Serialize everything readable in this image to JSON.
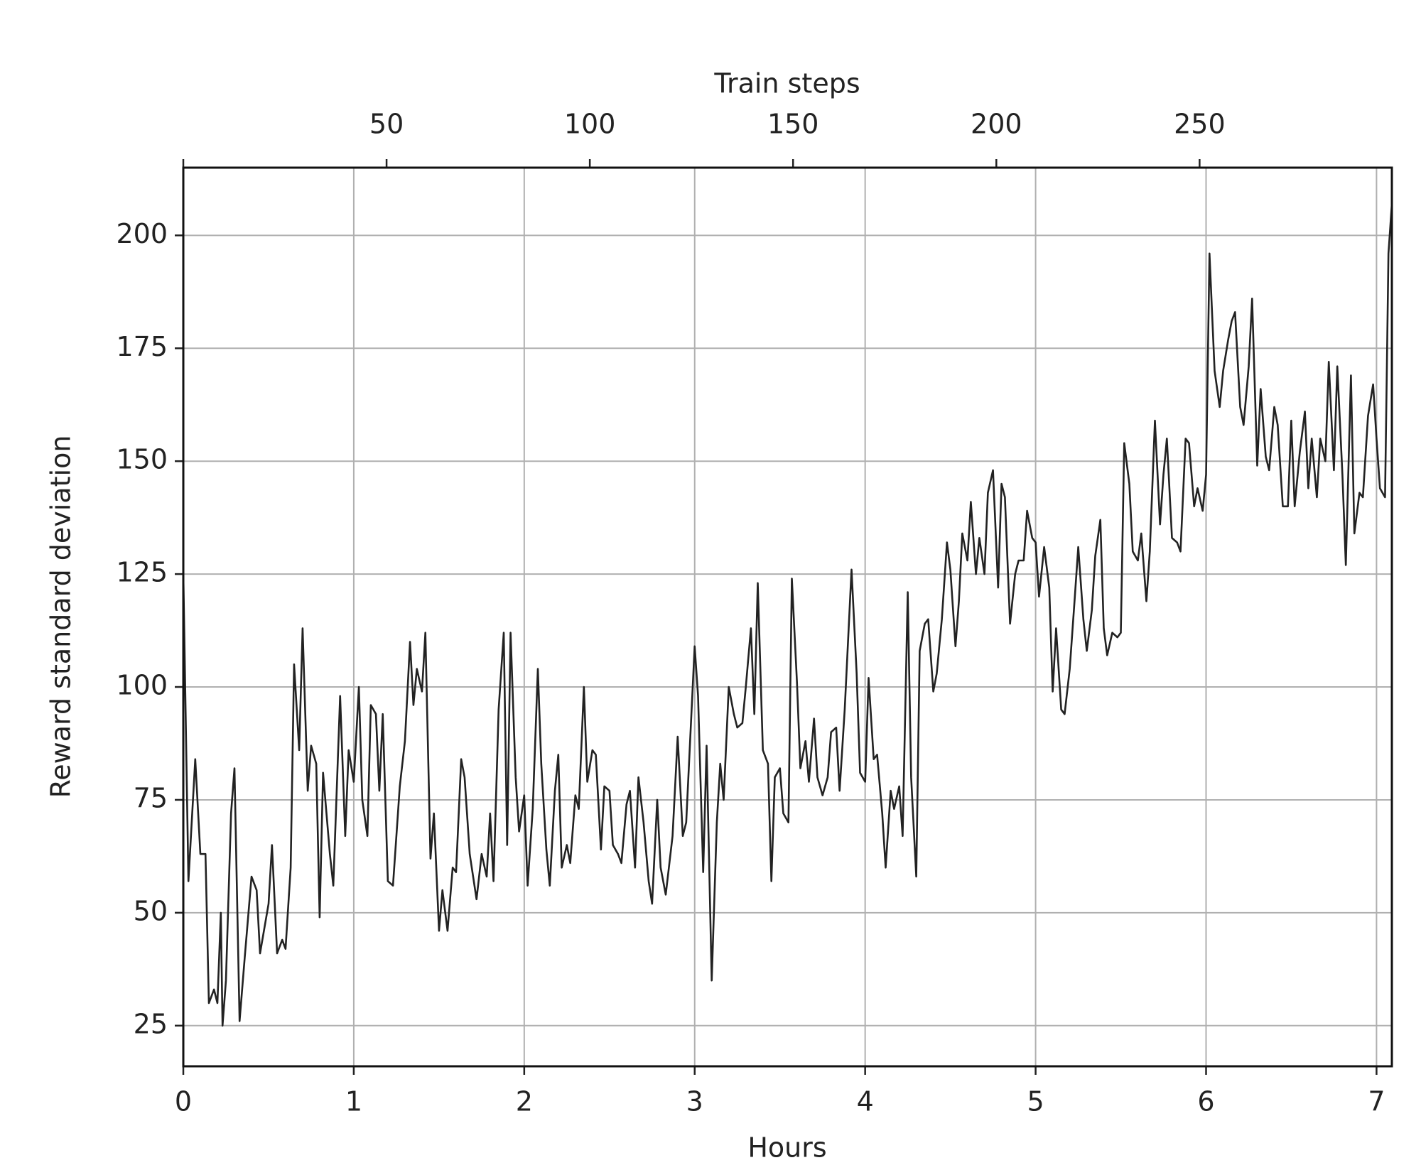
{
  "chart_data": {
    "type": "line",
    "xlabel": "Hours",
    "ylabel": "Reward standard deviation",
    "x2label": "Train steps",
    "xlim": [
      0,
      7.09
    ],
    "xticks": [
      0,
      1,
      2,
      3,
      4,
      5,
      6,
      7
    ],
    "x2lim": [
      0,
      297.3
    ],
    "x2ticks": [
      50,
      100,
      150,
      200,
      250
    ],
    "ylim": [
      16,
      215
    ],
    "yticks": [
      25,
      50,
      75,
      100,
      125,
      150,
      175,
      200
    ],
    "grid": true,
    "color": "#222222",
    "x": [
      0,
      0.03,
      0.07,
      0.1,
      0.13,
      0.15,
      0.18,
      0.2,
      0.22,
      0.23,
      0.25,
      0.28,
      0.3,
      0.33,
      0.36,
      0.4,
      0.43,
      0.45,
      0.5,
      0.52,
      0.55,
      0.58,
      0.6,
      0.63,
      0.65,
      0.68,
      0.7,
      0.73,
      0.75,
      0.78,
      0.8,
      0.82,
      0.86,
      0.88,
      0.9,
      0.92,
      0.95,
      0.97,
      1.0,
      1.03,
      1.05,
      1.08,
      1.1,
      1.13,
      1.15,
      1.17,
      1.2,
      1.23,
      1.27,
      1.3,
      1.33,
      1.35,
      1.37,
      1.4,
      1.42,
      1.45,
      1.47,
      1.5,
      1.52,
      1.55,
      1.58,
      1.6,
      1.63,
      1.65,
      1.68,
      1.7,
      1.72,
      1.75,
      1.78,
      1.8,
      1.82,
      1.85,
      1.88,
      1.9,
      1.92,
      1.95,
      1.97,
      2.0,
      2.02,
      2.05,
      2.08,
      2.1,
      2.13,
      2.15,
      2.18,
      2.2,
      2.22,
      2.25,
      2.27,
      2.3,
      2.32,
      2.35,
      2.37,
      2.4,
      2.42,
      2.45,
      2.47,
      2.5,
      2.52,
      2.55,
      2.57,
      2.6,
      2.62,
      2.65,
      2.67,
      2.7,
      2.73,
      2.75,
      2.78,
      2.8,
      2.83,
      2.87,
      2.9,
      2.93,
      2.95,
      3.0,
      3.02,
      3.05,
      3.07,
      3.1,
      3.13,
      3.15,
      3.17,
      3.2,
      3.23,
      3.25,
      3.28,
      3.3,
      3.33,
      3.35,
      3.37,
      3.4,
      3.43,
      3.45,
      3.47,
      3.5,
      3.52,
      3.55,
      3.57,
      3.6,
      3.62,
      3.65,
      3.67,
      3.7,
      3.72,
      3.75,
      3.78,
      3.8,
      3.83,
      3.85,
      3.88,
      3.92,
      3.95,
      3.97,
      4.0,
      4.02,
      4.05,
      4.07,
      4.1,
      4.12,
      4.15,
      4.17,
      4.2,
      4.22,
      4.25,
      4.27,
      4.3,
      4.32,
      4.35,
      4.37,
      4.4,
      4.42,
      4.45,
      4.48,
      4.5,
      4.53,
      4.55,
      4.57,
      4.6,
      4.62,
      4.65,
      4.67,
      4.7,
      4.72,
      4.75,
      4.78,
      4.8,
      4.82,
      4.85,
      4.88,
      4.9,
      4.93,
      4.95,
      4.98,
      5.0,
      5.02,
      5.05,
      5.08,
      5.1,
      5.12,
      5.15,
      5.17,
      5.2,
      5.23,
      5.25,
      5.28,
      5.3,
      5.33,
      5.35,
      5.38,
      5.4,
      5.42,
      5.45,
      5.48,
      5.5,
      5.52,
      5.55,
      5.57,
      5.6,
      5.62,
      5.65,
      5.67,
      5.7,
      5.73,
      5.75,
      5.77,
      5.8,
      5.83,
      5.85,
      5.88,
      5.9,
      5.93,
      5.95,
      5.98,
      6.0,
      6.02,
      6.05,
      6.08,
      6.1,
      6.13,
      6.15,
      6.17,
      6.2,
      6.22,
      6.25,
      6.27,
      6.3,
      6.32,
      6.35,
      6.37,
      6.4,
      6.42,
      6.45,
      6.48,
      6.5,
      6.52,
      6.55,
      6.58,
      6.6,
      6.62,
      6.65,
      6.67,
      6.7,
      6.72,
      6.75,
      6.77,
      6.8,
      6.82,
      6.85,
      6.87,
      6.9,
      6.92,
      6.95,
      6.98,
      7.0,
      7.02,
      7.05,
      7.07,
      7.09
    ],
    "values": [
      125,
      57,
      84,
      63,
      63,
      30,
      33,
      30,
      50,
      25,
      35,
      72,
      82,
      26,
      40,
      58,
      55,
      41,
      52,
      65,
      41,
      44,
      42,
      60,
      105,
      86,
      113,
      77,
      87,
      83,
      49,
      81,
      63,
      56,
      77,
      98,
      67,
      86,
      79,
      100,
      75,
      67,
      96,
      94,
      77,
      94,
      57,
      56,
      78,
      88,
      110,
      96,
      104,
      99,
      112,
      62,
      72,
      46,
      55,
      46,
      60,
      59,
      84,
      80,
      63,
      58,
      53,
      63,
      58,
      72,
      57,
      95,
      112,
      65,
      112,
      80,
      68,
      76,
      56,
      73,
      104,
      83,
      64,
      56,
      77,
      85,
      60,
      65,
      61,
      76,
      73,
      100,
      79,
      86,
      85,
      64,
      78,
      77,
      65,
      63,
      61,
      74,
      77,
      60,
      80,
      70,
      57,
      52,
      75,
      60,
      54,
      67,
      89,
      67,
      70,
      109,
      98,
      59,
      87,
      35,
      70,
      83,
      75,
      100,
      94,
      91,
      92,
      100,
      113,
      94,
      123,
      86,
      83,
      57,
      80,
      82,
      72,
      70,
      124,
      101,
      82,
      88,
      79,
      93,
      80,
      76,
      80,
      90,
      91,
      77,
      95,
      126,
      103,
      81,
      79,
      102,
      84,
      85,
      72,
      60,
      77,
      73,
      78,
      67,
      121,
      80,
      58,
      108,
      114,
      115,
      99,
      103,
      115,
      132,
      126,
      109,
      119,
      134,
      128,
      141,
      125,
      133,
      125,
      143,
      148,
      122,
      145,
      142,
      114,
      125,
      128,
      128,
      139,
      133,
      132,
      120,
      131,
      122,
      99,
      113,
      95,
      94,
      104,
      120,
      131,
      115,
      108,
      117,
      129,
      137,
      113,
      107,
      112,
      111,
      112,
      154,
      145,
      130,
      128,
      134,
      119,
      130,
      159,
      136,
      147,
      155,
      133,
      132,
      130,
      155,
      154,
      140,
      144,
      139,
      147,
      196,
      170,
      162,
      170,
      177,
      181,
      183,
      162,
      158,
      171,
      186,
      149,
      166,
      151,
      148,
      162,
      158,
      140,
      140,
      159,
      140,
      152,
      161,
      144,
      155,
      142,
      155,
      150,
      172,
      148,
      171,
      147,
      127,
      169,
      134,
      143,
      142,
      160,
      167,
      155,
      144,
      142,
      196,
      207
    ]
  }
}
